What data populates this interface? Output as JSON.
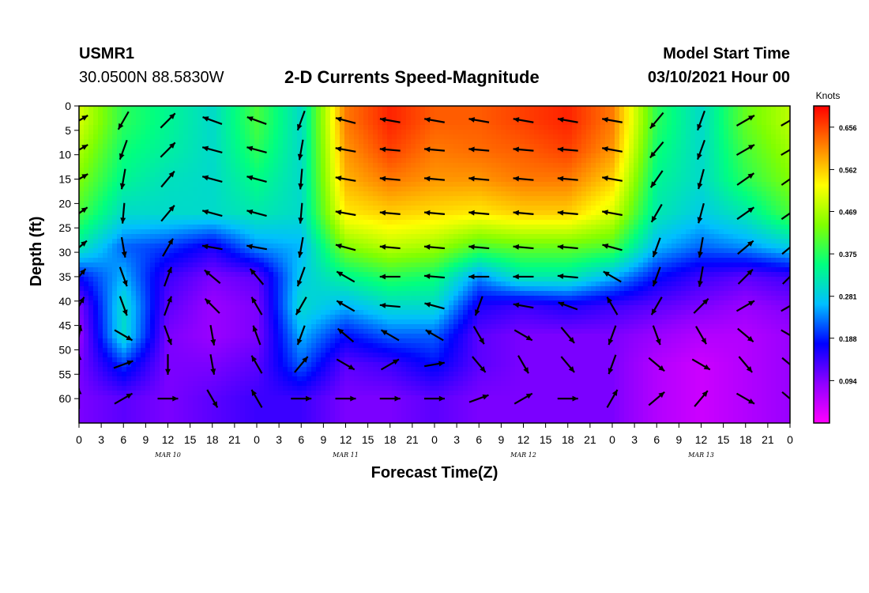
{
  "header": {
    "station": "USMR1",
    "coordinates": "30.0500N 88.5830W",
    "title": "2-D Currents Speed-Magnitude",
    "model_start_label": "Model Start Time",
    "model_start_value": "03/10/2021 Hour 00"
  },
  "chart_data": {
    "type": "heatmap",
    "title": "2-D Currents Speed-Magnitude",
    "xlabel": "Forecast Time(Z)",
    "ylabel": "Depth (ft)",
    "x_range_hours": [
      0,
      96
    ],
    "x_tick_step_hours": 3,
    "x_tick_labels": [
      "0",
      "3",
      "6",
      "9",
      "12",
      "15",
      "18",
      "21",
      "0",
      "3",
      "6",
      "9",
      "12",
      "15",
      "18",
      "21",
      "0",
      "3",
      "6",
      "9",
      "12",
      "15",
      "18",
      "21",
      "0",
      "3",
      "6",
      "9",
      "12",
      "15",
      "18",
      "21",
      "0"
    ],
    "day_labels": [
      "MAR 10",
      "MAR 11",
      "MAR 12",
      "MAR 13"
    ],
    "y_range_ft": [
      0,
      65
    ],
    "y_ticks": [
      0,
      5,
      10,
      15,
      20,
      25,
      30,
      35,
      40,
      45,
      50,
      55,
      60
    ],
    "y_inverted": true,
    "colorbar": {
      "unit_label": "Knots",
      "range": [
        0,
        0.703
      ],
      "tick_values": [
        "0.656",
        "0.562",
        "0.469",
        "0.375",
        "0.281",
        "0.188",
        "0.094"
      ],
      "colors": [
        "#ff00ff",
        "#8f00ff",
        "#0000ff",
        "#00bfff",
        "#00ff80",
        "#80ff00",
        "#ffff00",
        "#ff8000",
        "#ff0000"
      ]
    },
    "depth_levels_ft": [
      3,
      9,
      15,
      22,
      29,
      35,
      41,
      47,
      53,
      60
    ],
    "time_columns_hours": [
      0,
      6,
      12,
      18,
      24,
      30,
      36,
      42,
      48,
      54,
      60,
      66,
      72,
      78,
      84,
      90,
      96
    ],
    "speed_knots": [
      [
        0.5,
        0.38,
        0.34,
        0.3,
        0.4,
        0.3,
        0.62,
        0.68,
        0.64,
        0.64,
        0.66,
        0.68,
        0.62,
        0.38,
        0.3,
        0.42,
        0.48
      ],
      [
        0.47,
        0.36,
        0.33,
        0.3,
        0.38,
        0.3,
        0.6,
        0.66,
        0.62,
        0.63,
        0.64,
        0.66,
        0.6,
        0.36,
        0.3,
        0.4,
        0.46
      ],
      [
        0.44,
        0.34,
        0.31,
        0.3,
        0.35,
        0.3,
        0.58,
        0.62,
        0.6,
        0.6,
        0.62,
        0.62,
        0.56,
        0.34,
        0.3,
        0.38,
        0.44
      ],
      [
        0.4,
        0.3,
        0.3,
        0.3,
        0.32,
        0.3,
        0.54,
        0.56,
        0.55,
        0.54,
        0.56,
        0.56,
        0.5,
        0.32,
        0.28,
        0.32,
        0.4
      ],
      [
        0.32,
        0.22,
        0.2,
        0.16,
        0.24,
        0.26,
        0.44,
        0.48,
        0.46,
        0.4,
        0.42,
        0.42,
        0.4,
        0.26,
        0.22,
        0.24,
        0.28
      ],
      [
        0.18,
        0.26,
        0.14,
        0.1,
        0.12,
        0.28,
        0.34,
        0.38,
        0.36,
        0.24,
        0.32,
        0.32,
        0.26,
        0.18,
        0.14,
        0.12,
        0.14
      ],
      [
        0.1,
        0.3,
        0.12,
        0.08,
        0.1,
        0.3,
        0.26,
        0.3,
        0.3,
        0.16,
        0.14,
        0.16,
        0.14,
        0.12,
        0.1,
        0.08,
        0.1
      ],
      [
        0.08,
        0.3,
        0.1,
        0.08,
        0.1,
        0.26,
        0.18,
        0.22,
        0.22,
        0.12,
        0.1,
        0.1,
        0.1,
        0.08,
        0.06,
        0.06,
        0.08
      ],
      [
        0.1,
        0.2,
        0.1,
        0.1,
        0.12,
        0.22,
        0.12,
        0.14,
        0.18,
        0.12,
        0.1,
        0.1,
        0.1,
        0.06,
        0.04,
        0.06,
        0.08
      ],
      [
        0.1,
        0.12,
        0.1,
        0.12,
        0.14,
        0.14,
        0.1,
        0.1,
        0.12,
        0.1,
        0.1,
        0.1,
        0.1,
        0.06,
        0.04,
        0.06,
        0.08
      ]
    ],
    "vector_direction_deg": [
      [
        60,
        210,
        45,
        290,
        290,
        200,
        285,
        280,
        280,
        280,
        280,
        280,
        280,
        220,
        200,
        60,
        60
      ],
      [
        60,
        200,
        45,
        285,
        285,
        190,
        280,
        275,
        275,
        275,
        275,
        275,
        280,
        220,
        200,
        60,
        60
      ],
      [
        60,
        190,
        40,
        285,
        285,
        185,
        280,
        275,
        275,
        275,
        275,
        275,
        280,
        215,
        195,
        55,
        55
      ],
      [
        55,
        185,
        40,
        285,
        285,
        185,
        280,
        275,
        275,
        275,
        275,
        275,
        280,
        210,
        195,
        55,
        55
      ],
      [
        50,
        170,
        30,
        280,
        280,
        190,
        285,
        275,
        275,
        275,
        275,
        275,
        285,
        200,
        190,
        50,
        50
      ],
      [
        40,
        160,
        20,
        310,
        320,
        200,
        300,
        270,
        275,
        270,
        270,
        275,
        300,
        200,
        190,
        45,
        45
      ],
      [
        30,
        160,
        20,
        315,
        330,
        210,
        300,
        275,
        285,
        200,
        280,
        290,
        330,
        210,
        45,
        60,
        60
      ],
      [
        10,
        120,
        160,
        170,
        340,
        200,
        310,
        300,
        300,
        150,
        120,
        140,
        200,
        160,
        150,
        130,
        120
      ],
      [
        0,
        70,
        180,
        170,
        330,
        40,
        120,
        60,
        80,
        140,
        150,
        140,
        200,
        130,
        120,
        140,
        130
      ],
      [
        0,
        60,
        90,
        150,
        330,
        90,
        90,
        90,
        90,
        70,
        60,
        90,
        30,
        50,
        40,
        120,
        130
      ]
    ]
  }
}
